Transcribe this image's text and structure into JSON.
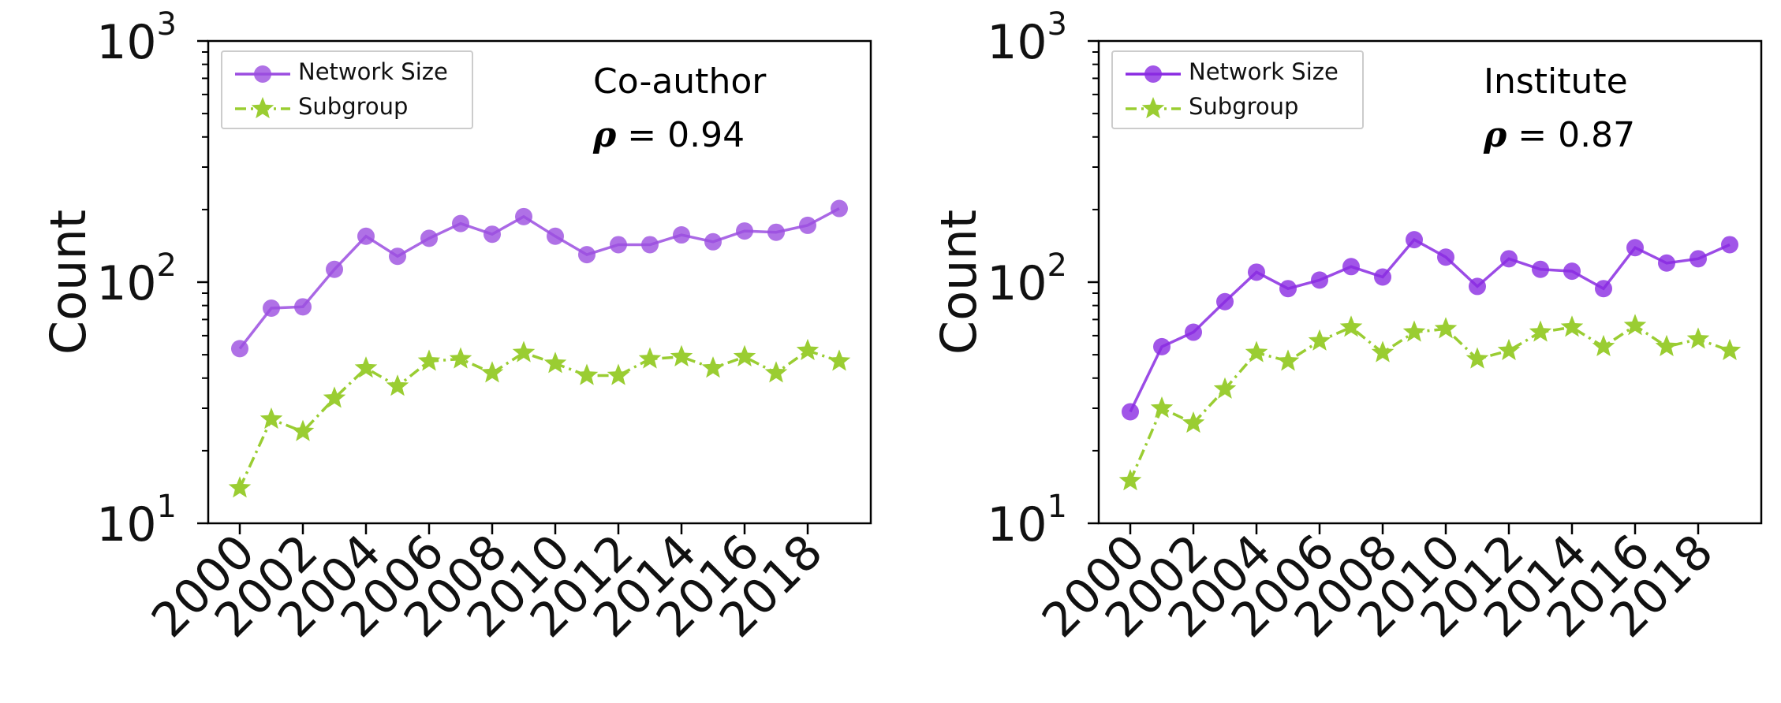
{
  "chart_data": [
    {
      "type": "line",
      "title": "Co-author",
      "rho_symbol": "ρ",
      "rho_text": " = 0.94",
      "ylabel": "Count",
      "xlabel": "",
      "yscale": "log",
      "ylim": [
        10,
        1000
      ],
      "y_ticks": [
        {
          "base": "10",
          "exp": "1"
        },
        {
          "base": "10",
          "exp": "2"
        },
        {
          "base": "10",
          "exp": "3"
        }
      ],
      "x": [
        2000,
        2001,
        2002,
        2003,
        2004,
        2005,
        2006,
        2007,
        2008,
        2009,
        2010,
        2011,
        2012,
        2013,
        2014,
        2015,
        2016,
        2017,
        2018,
        2019
      ],
      "x_tick_labels": [
        "2000",
        "2002",
        "2004",
        "2006",
        "2008",
        "2010",
        "2012",
        "2014",
        "2016",
        "2018"
      ],
      "legend": {
        "placement": "upper-left",
        "entries": [
          "Network Size",
          "Subgroup"
        ]
      },
      "series": [
        {
          "name": "Network Size",
          "color": "#9b4de0",
          "marker": "circle",
          "linestyle": "solid",
          "values": [
            53,
            78,
            79,
            113,
            155,
            128,
            152,
            175,
            158,
            187,
            155,
            130,
            143,
            143,
            157,
            147,
            163,
            161,
            172,
            202
          ]
        },
        {
          "name": "Subgroup",
          "color": "#9acd32",
          "marker": "star",
          "linestyle": "dashdot",
          "values": [
            14,
            27,
            24,
            33,
            44,
            37,
            47,
            48,
            42,
            51,
            46,
            41,
            41,
            48,
            49,
            44,
            49,
            42,
            52,
            47
          ]
        }
      ]
    },
    {
      "type": "line",
      "title": "Institute",
      "rho_symbol": "ρ",
      "rho_text": " = 0.87",
      "ylabel": "Count",
      "xlabel": "",
      "yscale": "log",
      "ylim": [
        10,
        1000
      ],
      "y_ticks": [
        {
          "base": "10",
          "exp": "1"
        },
        {
          "base": "10",
          "exp": "2"
        },
        {
          "base": "10",
          "exp": "3"
        }
      ],
      "x": [
        2000,
        2001,
        2002,
        2003,
        2004,
        2005,
        2006,
        2007,
        2008,
        2009,
        2010,
        2011,
        2012,
        2013,
        2014,
        2015,
        2016,
        2017,
        2018,
        2019
      ],
      "x_tick_labels": [
        "2000",
        "2002",
        "2004",
        "2006",
        "2008",
        "2010",
        "2012",
        "2014",
        "2016",
        "2018"
      ],
      "legend": {
        "placement": "upper-left",
        "entries": [
          "Network Size",
          "Subgroup"
        ]
      },
      "series": [
        {
          "name": "Network Size",
          "color": "#8a2be2",
          "marker": "circle",
          "linestyle": "solid",
          "values": [
            29,
            54,
            62,
            83,
            110,
            94,
            102,
            116,
            105,
            150,
            127,
            96,
            125,
            113,
            111,
            94,
            139,
            120,
            125,
            143
          ]
        },
        {
          "name": "Subgroup",
          "color": "#9acd32",
          "marker": "star",
          "linestyle": "dashdot",
          "values": [
            15,
            30,
            26,
            36,
            51,
            47,
            57,
            65,
            51,
            62,
            64,
            48,
            52,
            62,
            65,
            54,
            66,
            54,
            58,
            52
          ]
        }
      ]
    }
  ]
}
